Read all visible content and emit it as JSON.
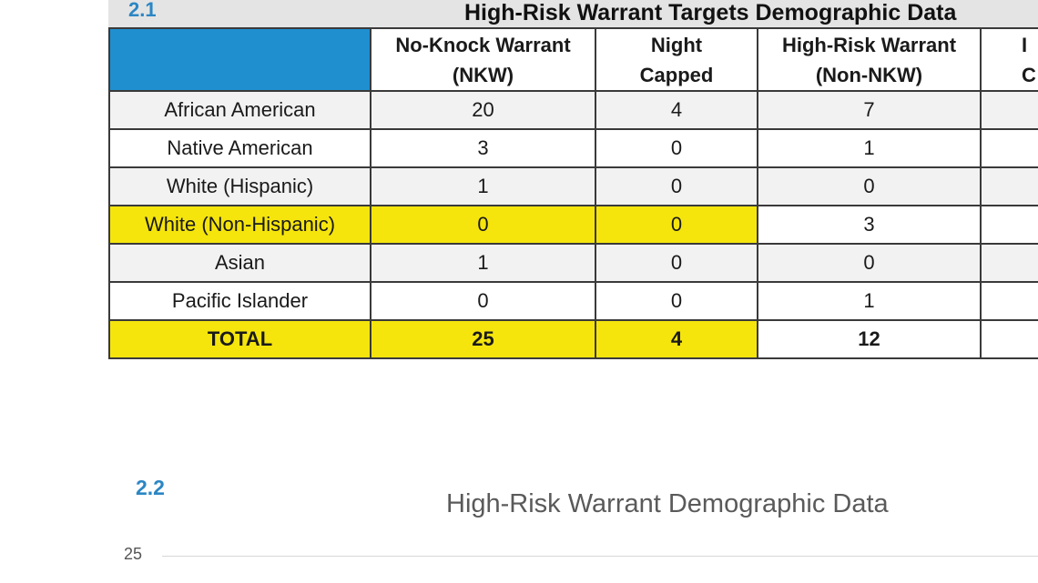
{
  "section_1": {
    "number": "2.1",
    "title": "High-Risk Warrant Targets Demographic Data"
  },
  "table": {
    "headers": [
      {
        "line1": "No-Knock Warrant",
        "line2": "(NKW)"
      },
      {
        "line1": "Night",
        "line2": "Capped"
      },
      {
        "line1": "High-Risk Warrant",
        "line2": "(Non-NKW)"
      },
      {
        "line1": "I",
        "line2": "C"
      }
    ],
    "rows": [
      {
        "label": "African American",
        "values": [
          "20",
          "4",
          "7",
          ""
        ]
      },
      {
        "label": "Native American",
        "values": [
          "3",
          "0",
          "1",
          ""
        ]
      },
      {
        "label": "White (Hispanic)",
        "values": [
          "1",
          "0",
          "0",
          ""
        ]
      },
      {
        "label": "White (Non-Hispanic)",
        "values": [
          "0",
          "0",
          "3",
          ""
        ]
      },
      {
        "label": "Asian",
        "values": [
          "1",
          "0",
          "0",
          ""
        ]
      },
      {
        "label": "Pacific Islander",
        "values": [
          "0",
          "0",
          "1",
          ""
        ]
      },
      {
        "label": "TOTAL",
        "values": [
          "25",
          "4",
          "12",
          ""
        ]
      }
    ]
  },
  "section_2": {
    "number": "2.2",
    "chart_title": "High-Risk Warrant Demographic Data",
    "y_tick_top": "25"
  },
  "colors": {
    "header_blue": "#1f8fd0",
    "highlight_yellow": "#f5e50d",
    "section_number_blue": "#2b86c4"
  }
}
